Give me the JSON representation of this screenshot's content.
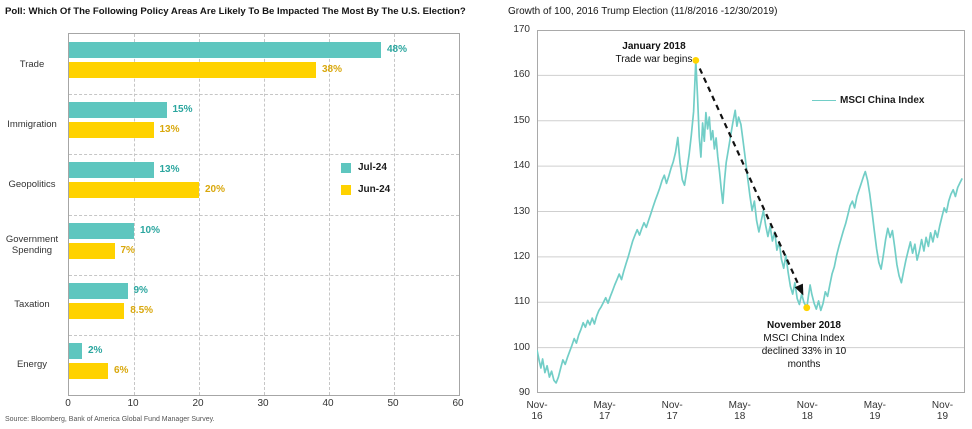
{
  "page_bg": "#ffffff",
  "colors": {
    "teal_bar": "#5ec6bf",
    "teal_label": "#2ba69f",
    "yellow_bar": "#ffd200",
    "yellow_label": "#d9a80c",
    "line_teal": "#72cec7",
    "marker_yellow": "#ffd400",
    "grid_dashed": "#c6c6c6",
    "grid_solid": "#cfcfcf",
    "plot_border": "#a9a9a9",
    "arrow_black": "#111111"
  },
  "chart_data": [
    {
      "type": "bar",
      "orientation": "horizontal",
      "title": "Poll: Which Of The Following Policy Areas Are Likely To Be Impacted The Most By The U.S. Election?",
      "source": "Source: Bloomberg, Bank of America Global Fund Manager Survey.",
      "categories": [
        "Trade",
        "Immigration",
        "Geopolitics",
        "Government Spending",
        "Taxation",
        "Energy"
      ],
      "series": [
        {
          "name": "Jul-24",
          "color": "#5ec6bf",
          "label_color": "#2ba69f",
          "values": [
            48,
            15,
            13,
            10,
            9,
            2
          ],
          "labels": [
            "48%",
            "15%",
            "13%",
            "10%",
            "9%",
            "2%"
          ]
        },
        {
          "name": "Jun-24",
          "color": "#ffd200",
          "label_color": "#d9a80c",
          "values": [
            38,
            13,
            20,
            7,
            8.5,
            6
          ],
          "labels": [
            "38%",
            "13%",
            "20%",
            "7%",
            "8.5%",
            "6%"
          ]
        }
      ],
      "xlim": [
        0,
        60
      ],
      "xticks": [
        0,
        10,
        20,
        30,
        40,
        50,
        60
      ],
      "grid": "dashed",
      "legend_position": "inside-right-middle"
    },
    {
      "type": "line",
      "title": "Growth of 100, 2016 Trump Election (11/8/2016 -12/30/2019)",
      "ylim": [
        90,
        170
      ],
      "yticks": [
        90,
        100,
        110,
        120,
        130,
        140,
        150,
        160,
        170
      ],
      "xlim_months": [
        0,
        38
      ],
      "xtick_labels": [
        "Nov-16",
        "May-17",
        "Nov-17",
        "May-18",
        "Nov-18",
        "May-19",
        "Nov-19"
      ],
      "xtick_positions": [
        0,
        6,
        12,
        18,
        24,
        30,
        36
      ],
      "grid": "horizontal-solid",
      "legend": [
        {
          "label": "MSCI China Index",
          "color": "#72cec7"
        }
      ],
      "series": [
        {
          "name": "MSCI China Index",
          "color": "#72cec7",
          "points": [
            [
              0,
              99.5
            ],
            [
              0.2,
              97
            ],
            [
              0.35,
              95.5
            ],
            [
              0.5,
              97.5
            ],
            [
              0.7,
              94.5
            ],
            [
              0.9,
              96
            ],
            [
              1.1,
              93.5
            ],
            [
              1.3,
              94.8
            ],
            [
              1.5,
              92.8
            ],
            [
              1.7,
              92.2
            ],
            [
              1.9,
              93.5
            ],
            [
              2.1,
              95.5
            ],
            [
              2.3,
              97.3
            ],
            [
              2.5,
              96.3
            ],
            [
              2.7,
              97.8
            ],
            [
              2.9,
              99.2
            ],
            [
              3.1,
              100.5
            ],
            [
              3.3,
              102
            ],
            [
              3.5,
              101
            ],
            [
              3.7,
              102.8
            ],
            [
              3.9,
              104
            ],
            [
              4.1,
              105.5
            ],
            [
              4.3,
              104.5
            ],
            [
              4.5,
              106
            ],
            [
              4.7,
              105
            ],
            [
              4.9,
              106.5
            ],
            [
              5.1,
              105.2
            ],
            [
              5.3,
              107
            ],
            [
              5.5,
              108.2
            ],
            [
              5.7,
              109
            ],
            [
              5.9,
              110
            ],
            [
              6.1,
              111
            ],
            [
              6.3,
              109.8
            ],
            [
              6.5,
              111.2
            ],
            [
              6.7,
              112.5
            ],
            [
              6.9,
              113.8
            ],
            [
              7.1,
              115
            ],
            [
              7.3,
              116.2
            ],
            [
              7.5,
              115
            ],
            [
              7.7,
              116.8
            ],
            [
              7.9,
              118.5
            ],
            [
              8.1,
              120
            ],
            [
              8.3,
              121.8
            ],
            [
              8.5,
              123.5
            ],
            [
              8.7,
              124.8
            ],
            [
              8.9,
              126
            ],
            [
              9.1,
              124.8
            ],
            [
              9.3,
              126.2
            ],
            [
              9.5,
              127.5
            ],
            [
              9.7,
              126.5
            ],
            [
              9.9,
              128
            ],
            [
              10.1,
              129.5
            ],
            [
              10.3,
              131
            ],
            [
              10.5,
              132.5
            ],
            [
              10.7,
              133.8
            ],
            [
              10.9,
              135.2
            ],
            [
              11.1,
              136.8
            ],
            [
              11.3,
              138
            ],
            [
              11.5,
              136.2
            ],
            [
              11.7,
              137.8
            ],
            [
              11.9,
              139.5
            ],
            [
              12.1,
              141
            ],
            [
              12.3,
              143
            ],
            [
              12.5,
              146.3
            ],
            [
              12.7,
              140.8
            ],
            [
              12.9,
              137
            ],
            [
              13.1,
              135.8
            ],
            [
              13.3,
              139
            ],
            [
              13.5,
              142.5
            ],
            [
              13.7,
              146.8
            ],
            [
              13.9,
              152
            ],
            [
              14.0,
              157.5
            ],
            [
              14.1,
              163.3
            ],
            [
              14.25,
              155.5
            ],
            [
              14.4,
              146.5
            ],
            [
              14.55,
              142
            ],
            [
              14.7,
              149.5
            ],
            [
              14.85,
              145.5
            ],
            [
              15.0,
              151.8
            ],
            [
              15.15,
              148.2
            ],
            [
              15.3,
              150.8
            ],
            [
              15.45,
              145.8
            ],
            [
              15.6,
              147.8
            ],
            [
              15.75,
              143.8
            ],
            [
              15.9,
              146.2
            ],
            [
              16.05,
              142
            ],
            [
              16.2,
              138.8
            ],
            [
              16.35,
              135
            ],
            [
              16.5,
              131.8
            ],
            [
              16.65,
              136.8
            ],
            [
              16.8,
              140.8
            ],
            [
              17.0,
              143.8
            ],
            [
              17.2,
              146.8
            ],
            [
              17.4,
              149.8
            ],
            [
              17.6,
              152.3
            ],
            [
              17.75,
              148.8
            ],
            [
              17.9,
              150.8
            ],
            [
              18.1,
              149.2
            ],
            [
              18.3,
              145.5
            ],
            [
              18.5,
              141.5
            ],
            [
              18.7,
              137.5
            ],
            [
              18.9,
              133.5
            ],
            [
              19.1,
              130.2
            ],
            [
              19.3,
              132.3
            ],
            [
              19.5,
              128
            ],
            [
              19.7,
              125.5
            ],
            [
              19.9,
              127.8
            ],
            [
              20.1,
              130.2
            ],
            [
              20.3,
              127
            ],
            [
              20.5,
              124.5
            ],
            [
              20.7,
              126.8
            ],
            [
              20.9,
              123.5
            ],
            [
              21.1,
              125.5
            ],
            [
              21.3,
              121.5
            ],
            [
              21.5,
              123.3
            ],
            [
              21.7,
              119.5
            ],
            [
              21.9,
              117.5
            ],
            [
              22.1,
              120.3
            ],
            [
              22.3,
              116.5
            ],
            [
              22.5,
              113.5
            ],
            [
              22.7,
              111.8
            ],
            [
              22.9,
              114.3
            ],
            [
              23.1,
              110.8
            ],
            [
              23.3,
              109.5
            ],
            [
              23.5,
              111.8
            ],
            [
              23.7,
              110
            ],
            [
              23.95,
              108.8
            ],
            [
              24.1,
              111.3
            ],
            [
              24.25,
              113.8
            ],
            [
              24.4,
              111.8
            ],
            [
              24.6,
              109.8
            ],
            [
              24.8,
              108.5
            ],
            [
              25.0,
              110.3
            ],
            [
              25.2,
              108.2
            ],
            [
              25.4,
              109.8
            ],
            [
              25.6,
              112.3
            ],
            [
              25.8,
              111.3
            ],
            [
              26.0,
              113.8
            ],
            [
              26.2,
              116.3
            ],
            [
              26.4,
              117.8
            ],
            [
              26.6,
              120.3
            ],
            [
              26.8,
              122.3
            ],
            [
              27.0,
              124
            ],
            [
              27.2,
              125.8
            ],
            [
              27.4,
              127.3
            ],
            [
              27.6,
              129.3
            ],
            [
              27.8,
              131.3
            ],
            [
              28.0,
              132.3
            ],
            [
              28.2,
              130.8
            ],
            [
              28.4,
              133.3
            ],
            [
              28.6,
              134.8
            ],
            [
              28.8,
              136.3
            ],
            [
              29.0,
              137.8
            ],
            [
              29.15,
              138.8
            ],
            [
              29.35,
              136.8
            ],
            [
              29.55,
              133.8
            ],
            [
              29.75,
              129.8
            ],
            [
              29.95,
              125.8
            ],
            [
              30.15,
              121.8
            ],
            [
              30.35,
              118.8
            ],
            [
              30.55,
              117.3
            ],
            [
              30.75,
              120.3
            ],
            [
              30.95,
              123.8
            ],
            [
              31.15,
              126.3
            ],
            [
              31.35,
              124.3
            ],
            [
              31.55,
              125.8
            ],
            [
              31.75,
              122.3
            ],
            [
              31.95,
              118.3
            ],
            [
              32.15,
              115.8
            ],
            [
              32.35,
              114.3
            ],
            [
              32.55,
              116.8
            ],
            [
              32.75,
              119.3
            ],
            [
              32.95,
              121.3
            ],
            [
              33.15,
              123.3
            ],
            [
              33.35,
              120.8
            ],
            [
              33.55,
              122.8
            ],
            [
              33.75,
              119.3
            ],
            [
              33.95,
              121.3
            ],
            [
              34.15,
              123.8
            ],
            [
              34.35,
              121.3
            ],
            [
              34.55,
              124.3
            ],
            [
              34.75,
              122.3
            ],
            [
              34.95,
              125.3
            ],
            [
              35.15,
              123.3
            ],
            [
              35.35,
              125.8
            ],
            [
              35.55,
              124.3
            ],
            [
              35.75,
              126.8
            ],
            [
              35.95,
              128.8
            ],
            [
              36.15,
              130.8
            ],
            [
              36.35,
              129.8
            ],
            [
              36.55,
              132.3
            ],
            [
              36.75,
              133.8
            ],
            [
              36.95,
              134.8
            ],
            [
              37.15,
              133.3
            ],
            [
              37.35,
              135.3
            ],
            [
              37.55,
              136.3
            ],
            [
              37.75,
              137.3
            ]
          ]
        }
      ],
      "markers": [
        {
          "x": 14.1,
          "y": 163.3,
          "color": "#ffd400",
          "meaning": "January 2018 peak"
        },
        {
          "x": 23.95,
          "y": 108.8,
          "color": "#ffd400",
          "meaning": "November 2018 trough"
        }
      ],
      "arrow": {
        "from": {
          "x": 14.45,
          "y": 161.5
        },
        "to": {
          "x": 23.65,
          "y": 111.5
        },
        "style": "dashed"
      },
      "annotations": [
        {
          "lines": [
            {
              "text": "January 2018",
              "bold": true
            },
            {
              "text": "Trade war begins",
              "bold": false
            }
          ]
        },
        {
          "lines": [
            {
              "text": "November 2018",
              "bold": true
            },
            {
              "text": "MSCI China Index",
              "bold": false
            },
            {
              "text": "declined 33% in 10",
              "bold": false
            },
            {
              "text": "months",
              "bold": false
            }
          ]
        }
      ]
    }
  ]
}
